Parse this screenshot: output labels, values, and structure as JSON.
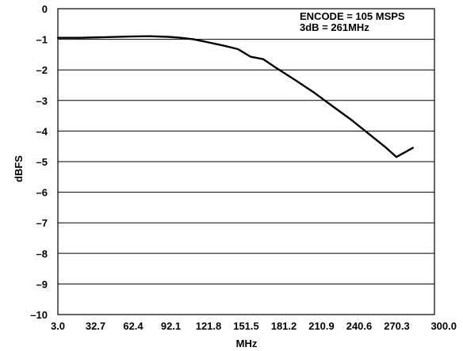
{
  "chart_data": {
    "type": "line",
    "title": "",
    "xlabel": "MHz",
    "ylabel": "dBFS",
    "xlim": [
      3.0,
      300.0
    ],
    "ylim": [
      -10,
      0
    ],
    "grid": "horizontal",
    "x_tick_labels": [
      "3.0",
      "32.7",
      "62.4",
      "92.1",
      "121.8",
      "151.5",
      "181.2",
      "210.9",
      "240.6",
      "270.3",
      "300.0"
    ],
    "y_tick_labels": [
      "0",
      "–1",
      "–2",
      "–3",
      "–4",
      "–5",
      "–6",
      "–7",
      "–8",
      "–9",
      "–10"
    ],
    "annotations": [
      "ENCODE = 105 MSPS",
      "3dB = 261MHz"
    ],
    "series": [
      {
        "x": [
          3.0,
          20.0,
          40.0,
          60.0,
          75.0,
          90.0,
          100.0,
          110.0,
          121.8,
          135.0,
          145.0,
          155.0,
          165.0,
          175.0,
          190.0,
          205.0,
          220.0,
          235.0,
          250.0,
          262.0,
          270.0,
          283.0
        ],
        "values": [
          -0.95,
          -0.95,
          -0.93,
          -0.91,
          -0.9,
          -0.92,
          -0.95,
          -1.0,
          -1.1,
          -1.22,
          -1.32,
          -1.57,
          -1.65,
          -1.93,
          -2.33,
          -2.74,
          -3.2,
          -3.65,
          -4.15,
          -4.55,
          -4.85,
          -4.55
        ]
      }
    ]
  }
}
